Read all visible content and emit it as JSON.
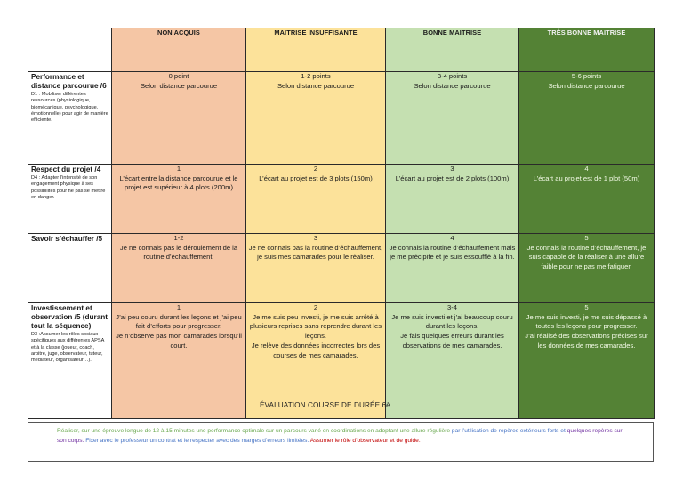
{
  "headers": {
    "level1": "NON ACQUIS",
    "level2": "MAITRISE INSUFFISANTE",
    "level3": "BONNE MAITRISE",
    "level4": "TRÈS BONNE MAITRISE"
  },
  "rows": [
    {
      "title": "Performance et distance parcourue /6",
      "desc": "D1 :  Mobiliser différentes ressources (physiologique, biomécanique, psychologique, émotionnelle) pour agir de manière efficiente.",
      "cells": [
        {
          "score": "0 point",
          "text": "Selon distance parcourue"
        },
        {
          "score": "1-2 points",
          "text": "Selon distance parcourue"
        },
        {
          "score": "3-4 points",
          "text": "Selon distance parcourue"
        },
        {
          "score": "5-6 points",
          "text": "Selon distance parcourue"
        }
      ]
    },
    {
      "title": "Respect du projet /4",
      "desc": "D4 :  Adapter l’intensité de son engagement physique à ses possibilités pour ne pas se mettre en danger.",
      "cells": [
        {
          "score": "1",
          "text": "L’écart entre la distance parcourue et le projet est supérieur à 4 plots (200m)"
        },
        {
          "score": "2",
          "text": "L’écart au projet est de 3 plots (150m)"
        },
        {
          "score": "3",
          "text": "L’écart au projet est de 2 plots (100m)"
        },
        {
          "score": "4",
          "text": "L’écart au projet est de 1 plot (50m)"
        }
      ]
    },
    {
      "title": "Savoir s’échauffer /5",
      "desc": "",
      "cells": [
        {
          "score": "1-2",
          "text": "Je ne connais pas le déroulement de la routine d’échauffement."
        },
        {
          "score": "3",
          "text": "Je ne connais pas la routine d’échauffement, je suis mes camarades pour le réaliser."
        },
        {
          "score": "4",
          "text": "Je connais la routine d’échauffement mais je me précipite et je suis essoufflé à la fin."
        },
        {
          "score": "5",
          "text": "Je connais la routine d’échauffement, je suis capable de la réaliser à une allure faible pour ne pas me fatiguer."
        }
      ]
    },
    {
      "title": "Investissement et observation /5 (durant tout la séquence)",
      "desc": "D3 :Assumer les rôles sociaux spécifiques aux différentes APSA et à la classe (joueur, coach, arbitre, juge, observateur, tuteur, médiateur, organisateur…).",
      "cells": [
        {
          "score": "1",
          "text": "J’ai peu couru durant les leçons et j’ai peu fait d’efforts pour progresser.\nJe n’observe pas mon camarades lorsqu’il court."
        },
        {
          "score": "2",
          "text": "Je me suis peu investi, je me suis arrêté à plusieurs reprises sans reprendre durant les leçons.\nJe relève des données incorrectes lors des courses de mes camarades."
        },
        {
          "score": "3-4",
          "text": "Je me suis investi et j’ai beaucoup couru durant les leçons.\nJe fais quelques erreurs durant les observations de mes camarades."
        },
        {
          "score": "5",
          "text": "Je me suis investi, je me suis dépassé à toutes les leçons pour progresser.\nJ’ai réalisé des observations précises sur les données de mes camarades."
        }
      ]
    }
  ],
  "watermark": "ÉVALUATION COURSE DE DURÉE 6è",
  "footer": {
    "part1": "Réaliser, sur une épreuve longue de 12 à 15 minutes une performance optimale sur un parcours varié en coordinations en adoptant une allure régulière",
    "part2": "par l’utilisation de repères extérieurs forts et",
    "part3": "quelques repères sur son corps.",
    "part4": "Fixer avec le professeur un contrat et le respecter avec des marges d’erreurs limitées.",
    "part5": "Assumer le rôle d’observateur et de guide."
  },
  "colors": {
    "level1": "#f5c6a5",
    "level2": "#fce29a",
    "level3": "#c5e0b1",
    "level4": "#548235"
  }
}
